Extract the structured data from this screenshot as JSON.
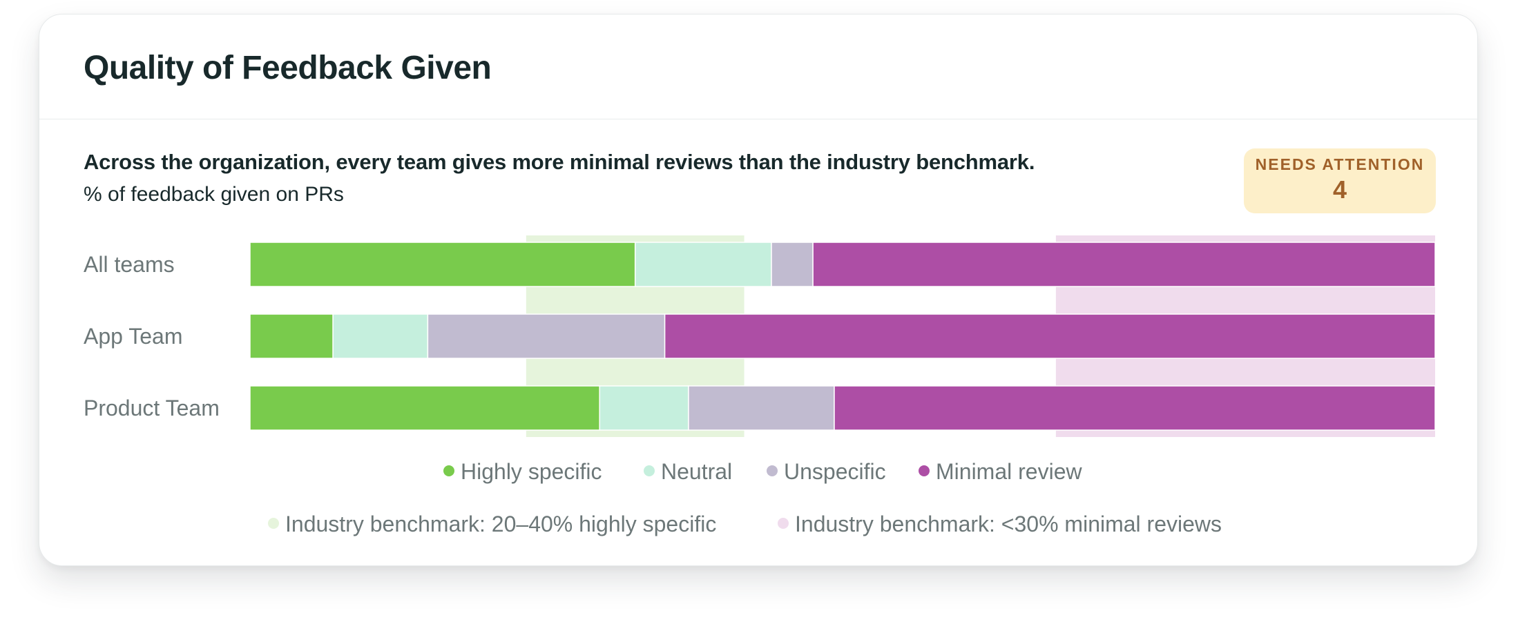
{
  "card": {
    "title": "Quality of Feedback Given",
    "headline": "Across the organization, every team gives more minimal reviews than the industry benchmark.",
    "subtitle": "% of feedback given on PRs"
  },
  "badge": {
    "label": "NEEDS ATTENTION",
    "value": "4"
  },
  "colors": {
    "highly_specific": "#79cb4c",
    "neutral": "#c5efdd",
    "unspecific": "#c1bbd0",
    "minimal_review": "#ad4ea5",
    "benchmark_specific_band": "#e6f4dc",
    "benchmark_minimal_band": "#f0dced",
    "badge_bg": "#fdefc9",
    "badge_text": "#a0612a"
  },
  "chart_data": {
    "type": "bar",
    "orientation": "horizontal",
    "stacked": true,
    "xlim": [
      0,
      100
    ],
    "categories": [
      "All teams",
      "App Team",
      "Product Team"
    ],
    "series": [
      {
        "name": "Highly specific",
        "color": "#79cb4c",
        "values": [
          32.5,
          7,
          29.5
        ]
      },
      {
        "name": "Neutral",
        "color": "#c5efdd",
        "values": [
          11.5,
          8,
          7.5
        ]
      },
      {
        "name": "Unspecific",
        "color": "#c1bbd0",
        "values": [
          3.5,
          20,
          12.3
        ]
      },
      {
        "name": "Minimal review",
        "color": "#ad4ea5",
        "values": [
          52.5,
          65,
          50.7
        ]
      }
    ],
    "benchmarks": [
      {
        "name": "Industry benchmark: 20–40% highly specific",
        "color": "#e6f4dc",
        "range": [
          23.3,
          41.7
        ]
      },
      {
        "name": "Industry benchmark: <30% minimal reviews",
        "color": "#f0dced",
        "range": [
          68,
          100
        ]
      }
    ],
    "grid": false,
    "legend_placement": "bottom"
  }
}
